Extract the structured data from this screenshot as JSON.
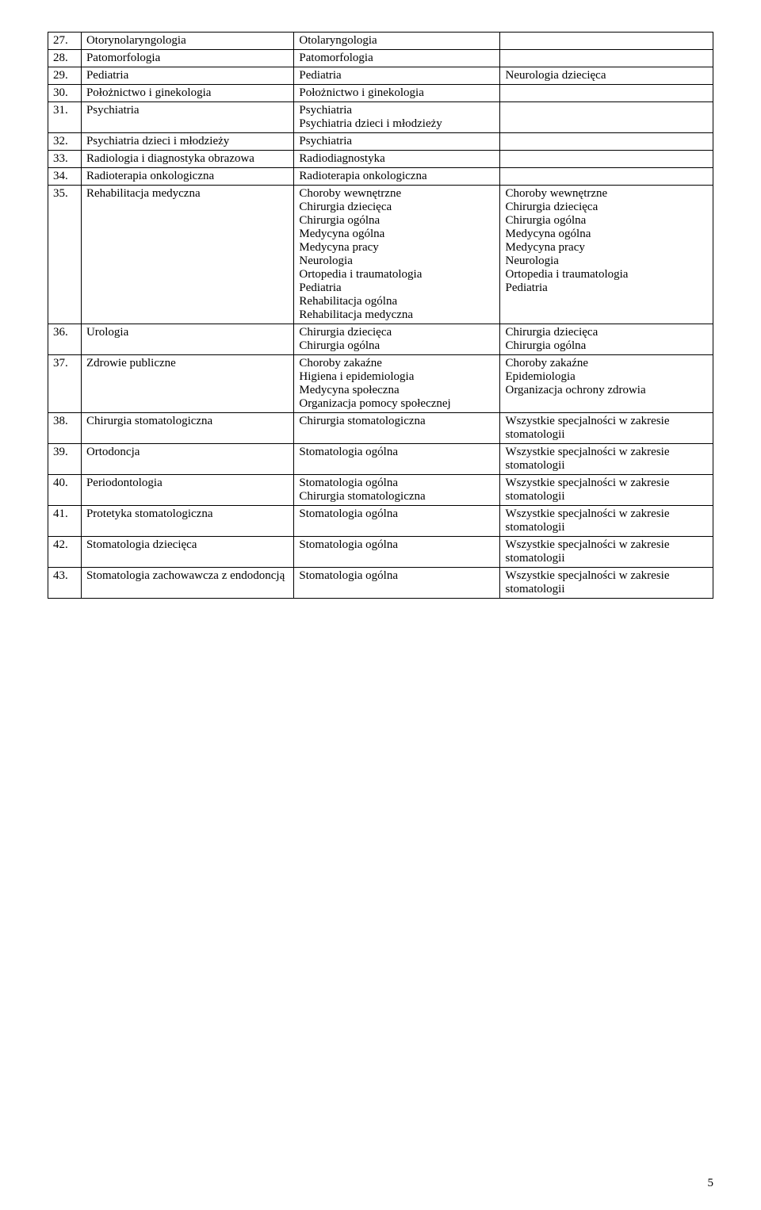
{
  "styling": {
    "font_family": "Times New Roman",
    "font_size_pt": 12,
    "border_color": "#000000",
    "background_color": "#ffffff",
    "text_color": "#000000",
    "column_widths_percent": [
      5,
      32,
      31,
      32
    ]
  },
  "page_number": "5",
  "rows": [
    {
      "n": "27.",
      "c1": "Otorynolaryngologia",
      "c2": "Otolaryngologia",
      "c3": ""
    },
    {
      "n": "28.",
      "c1": "Patomorfologia",
      "c2": "Patomorfologia",
      "c3": ""
    },
    {
      "n": "29.",
      "c1": "Pediatria",
      "c2": "Pediatria",
      "c3": "Neurologia dziecięca"
    },
    {
      "n": "30.",
      "c1": "Położnictwo i ginekologia",
      "c2": "Położnictwo i ginekologia",
      "c3": ""
    },
    {
      "n": "31.",
      "c1": "Psychiatria",
      "c2": "Psychiatria\nPsychiatria dzieci i młodzieży",
      "c3": ""
    },
    {
      "n": "32.",
      "c1": "Psychiatria dzieci i młodzieży",
      "c2": "Psychiatria",
      "c3": ""
    },
    {
      "n": "33.",
      "c1": "Radiologia i diagnostyka obrazowa",
      "c2": "Radiodiagnostyka",
      "c3": ""
    },
    {
      "n": "34.",
      "c1": "Radioterapia onkologiczna",
      "c2": "Radioterapia onkologiczna",
      "c3": ""
    },
    {
      "n": "35.",
      "c1": "Rehabilitacja medyczna",
      "c2": "Choroby wewnętrzne\nChirurgia dziecięca\nChirurgia ogólna\nMedycyna ogólna\nMedycyna pracy\nNeurologia\nOrtopedia i traumatologia\nPediatria\nRehabilitacja ogólna\nRehabilitacja medyczna",
      "c3": "Choroby wewnętrzne\nChirurgia dziecięca\nChirurgia ogólna\nMedycyna ogólna\nMedycyna pracy\nNeurologia\nOrtopedia i traumatologia\nPediatria"
    },
    {
      "n": "36.",
      "c1": "Urologia",
      "c2": "Chirurgia dziecięca\nChirurgia ogólna",
      "c3": "Chirurgia dziecięca\nChirurgia ogólna"
    },
    {
      "n": "37.",
      "c1": "Zdrowie publiczne",
      "c2": "Choroby zakaźne\nHigiena i epidemiologia\nMedycyna społeczna\nOrganizacja pomocy społecznej",
      "c3": "Choroby zakaźne\nEpidemiologia\nOrganizacja ochrony zdrowia"
    },
    {
      "n": "38.",
      "c1": "Chirurgia stomatologiczna",
      "c2": "Chirurgia stomatologiczna",
      "c3": "Wszystkie specjalności w zakresie stomatologii"
    },
    {
      "n": "39.",
      "c1": "Ortodoncja",
      "c2": "Stomatologia ogólna",
      "c3": "Wszystkie specjalności w zakresie stomatologii"
    },
    {
      "n": "40.",
      "c1": "Periodontologia",
      "c2": "Stomatologia ogólna\nChirurgia stomatologiczna",
      "c3": "Wszystkie specjalności w zakresie stomatologii"
    },
    {
      "n": "41.",
      "c1": "Protetyka stomatologiczna",
      "c2": "Stomatologia ogólna",
      "c3": "Wszystkie specjalności w zakresie stomatologii"
    },
    {
      "n": "42.",
      "c1": "Stomatologia dziecięca",
      "c2": "Stomatologia ogólna",
      "c3": "Wszystkie specjalności w zakresie stomatologii"
    },
    {
      "n": "43.",
      "c1": "Stomatologia zachowawcza z endodoncją",
      "c2": "Stomatologia ogólna",
      "c3": "Wszystkie specjalności w zakresie stomatologii"
    }
  ]
}
